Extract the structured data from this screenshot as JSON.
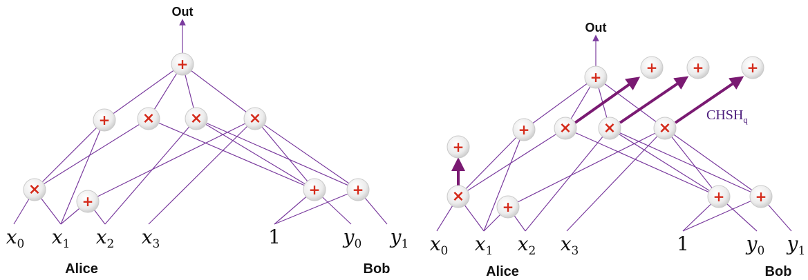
{
  "labels": {
    "out": "Out",
    "alice": "Alice",
    "bob": "Bob",
    "one": "1",
    "chsh_main": "CHSH",
    "chsh_sub": "q",
    "var_x": "x",
    "var_y": "y",
    "sub0": "0",
    "sub1": "1",
    "sub2": "2",
    "sub3": "3"
  },
  "symbols": {
    "plus": "+",
    "times": "×"
  },
  "colors": {
    "wire": "#7a3b9e",
    "thick_arrow": "#7a1a72",
    "operator": "#d42a1a",
    "chsh_text": "#4a1a7a"
  },
  "left_circuit": {
    "gates": [
      {
        "id": "L_top",
        "op": "plus"
      },
      {
        "id": "L_p1",
        "op": "plus"
      },
      {
        "id": "L_t1",
        "op": "times"
      },
      {
        "id": "L_t2",
        "op": "times"
      },
      {
        "id": "L_t3",
        "op": "times"
      },
      {
        "id": "L_tA",
        "op": "times"
      },
      {
        "id": "L_pA",
        "op": "plus"
      },
      {
        "id": "L_pB1",
        "op": "plus"
      },
      {
        "id": "L_pB2",
        "op": "plus"
      }
    ]
  },
  "right_circuit": {
    "gates": [
      {
        "id": "R_top",
        "op": "plus"
      },
      {
        "id": "R_p1",
        "op": "plus"
      },
      {
        "id": "R_t1",
        "op": "times"
      },
      {
        "id": "R_t2",
        "op": "times"
      },
      {
        "id": "R_t3",
        "op": "times"
      },
      {
        "id": "R_tA",
        "op": "times"
      },
      {
        "id": "R_pA",
        "op": "plus"
      },
      {
        "id": "R_pB1",
        "op": "plus"
      },
      {
        "id": "R_pB2",
        "op": "plus"
      },
      {
        "id": "R_o1",
        "op": "plus"
      },
      {
        "id": "R_o2",
        "op": "plus"
      },
      {
        "id": "R_o3",
        "op": "plus"
      },
      {
        "id": "R_oA",
        "op": "plus"
      }
    ]
  }
}
